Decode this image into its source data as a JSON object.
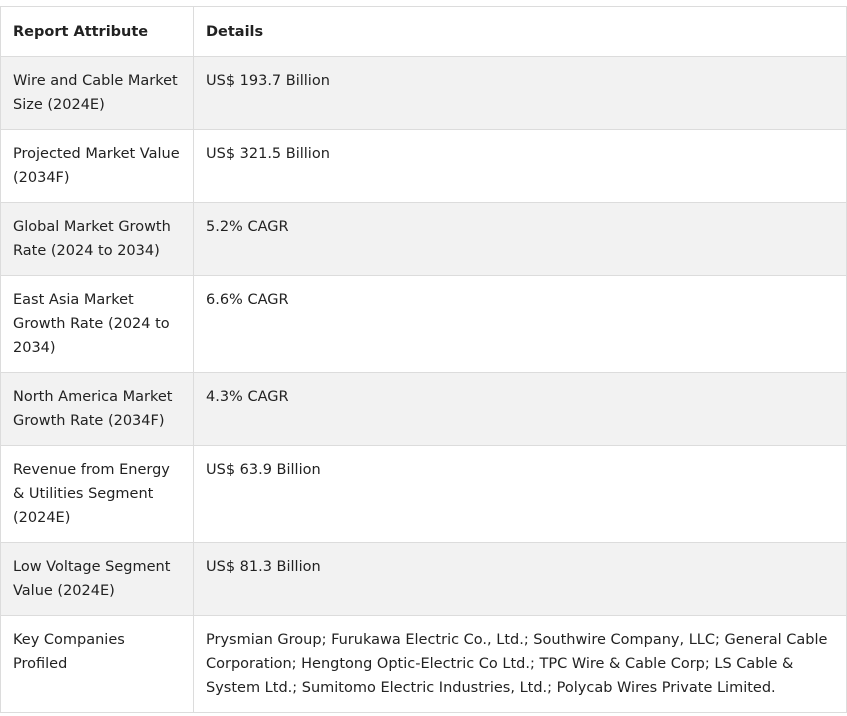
{
  "table": {
    "headers": [
      "Report Attribute",
      "Details"
    ],
    "rows": [
      {
        "attribute": "Wire and Cable Market Size (2024E)",
        "details": "US$ 193.7 Billion"
      },
      {
        "attribute": "Projected Market Value (2034F)",
        "details": "US$ 321.5 Billion"
      },
      {
        "attribute": "Global Market Growth Rate (2024 to 2034)",
        "details": "5.2% CAGR"
      },
      {
        "attribute": "East Asia Market Growth Rate (2024 to 2034)",
        "details": "6.6% CAGR"
      },
      {
        "attribute": "North America Market Growth Rate (2034F)",
        "details": "4.3% CAGR"
      },
      {
        "attribute": "Revenue from Energy & Utilities Segment (2024E)",
        "details": "US$ 63.9 Billion"
      },
      {
        "attribute": "Low Voltage Segment Value (2024E)",
        "details": "US$ 81.3 Billion"
      },
      {
        "attribute": "Key Companies Profiled",
        "details": "Prysmian Group; Furukawa Electric Co., Ltd.; Southwire Company, LLC; General Cable Corporation; Hengtong Optic-Electric Co Ltd.; TPC Wire & Cable Corp; LS Cable & System Ltd.; Sumitomo Electric Industries, Ltd.; Polycab Wires Private Limited."
      }
    ]
  }
}
